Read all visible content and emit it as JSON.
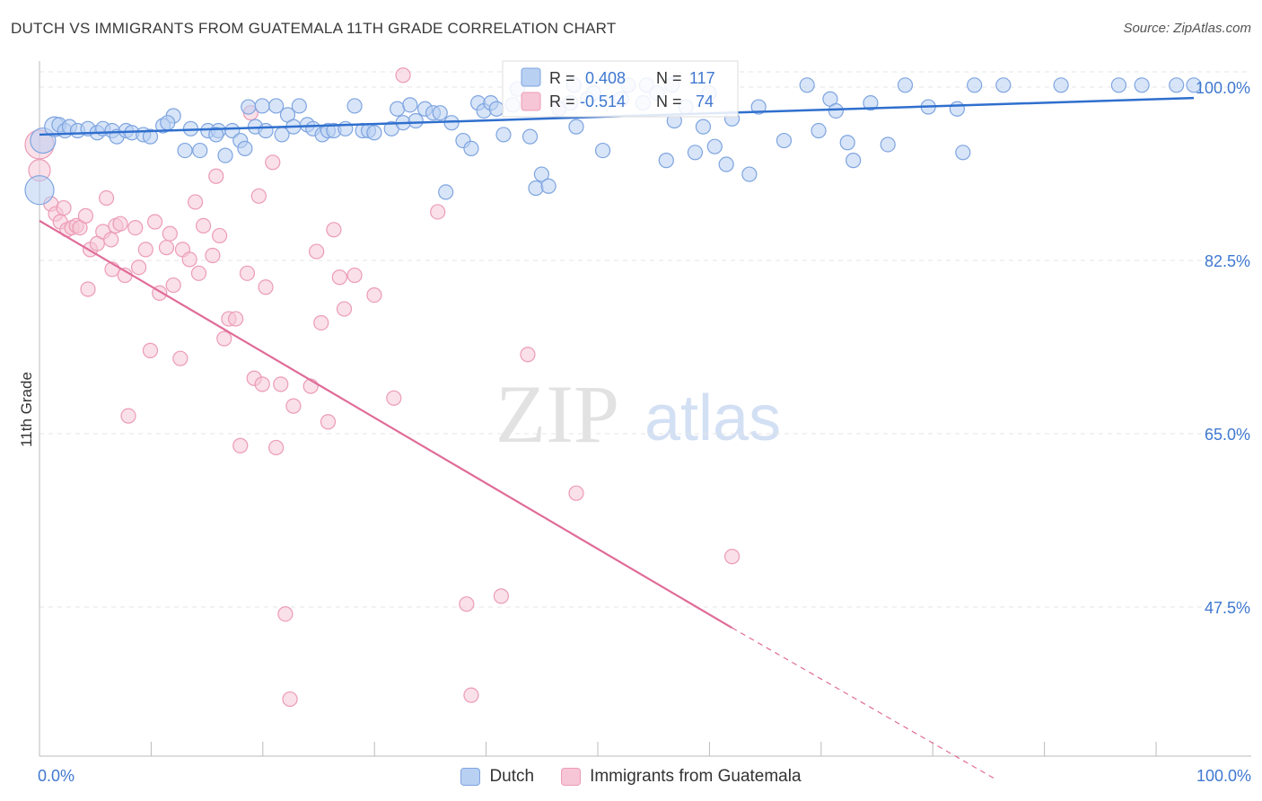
{
  "header": {
    "title": "DUTCH VS IMMIGRANTS FROM GUATEMALA 11TH GRADE CORRELATION CHART",
    "source": "Source: ZipAtlas.com"
  },
  "watermark": {
    "part1": "ZIP",
    "part2": "atlas"
  },
  "legend": {
    "rows": [
      {
        "r_label": "R =",
        "r_value": "0.408",
        "n_label": "N =",
        "n_value": "117"
      },
      {
        "r_label": "R =",
        "r_value": "-0.514",
        "n_label": "N =",
        "n_value": "74"
      }
    ]
  },
  "bottom_legend": {
    "items": [
      "Dutch",
      "Immigrants from Guatemala"
    ]
  },
  "chart_data": {
    "type": "scatter",
    "title": "DUTCH VS IMMIGRANTS FROM GUATEMALA 11TH GRADE CORRELATION CHART",
    "xlabel": "",
    "ylabel": "11th Grade",
    "xlim": [
      0,
      100
    ],
    "ylim": [
      30,
      101.5
    ],
    "x_tick_labels": [
      "0.0%",
      "100.0%"
    ],
    "y_ticks": [
      100,
      82.5,
      65,
      47.5
    ],
    "y_tick_labels": [
      "100.0%",
      "82.5%",
      "65.0%",
      "47.5%"
    ],
    "grid": true,
    "legend_position": "top-center",
    "colors": {
      "blue_fill": "#b8d0f2",
      "blue_stroke": "#7ea4e0",
      "blue_line": "#2f6fce",
      "pink_fill": "#f6c6d6",
      "pink_stroke": "#ec9bb6",
      "pink_line": "#e06c98",
      "axis_text": "#3f78d0"
    },
    "series": [
      {
        "name": "Dutch",
        "r": 0.408,
        "n": 117,
        "trend": {
          "x": [
            0,
            100
          ],
          "y": [
            95.2,
            98.9
          ]
        },
        "points": [
          [
            0,
            89.6,
            16
          ],
          [
            0.3,
            94.6,
            14
          ],
          [
            1.3,
            96,
            11
          ],
          [
            1.7,
            96.2,
            8
          ],
          [
            2.2,
            95.6,
            8
          ],
          [
            2.6,
            96,
            8
          ],
          [
            3.3,
            95.6,
            8
          ],
          [
            4.2,
            95.8,
            8
          ],
          [
            5.0,
            95.4,
            8
          ],
          [
            5.5,
            95.8,
            8
          ],
          [
            6.3,
            95.6,
            8
          ],
          [
            6.7,
            95.0,
            8
          ],
          [
            7.5,
            95.6,
            8
          ],
          [
            8.0,
            95.4,
            8
          ],
          [
            9.0,
            95.2,
            8
          ],
          [
            9.6,
            95.0,
            8
          ],
          [
            10.7,
            96.1,
            8
          ],
          [
            11.6,
            97.1,
            8
          ],
          [
            11.1,
            96.4,
            8
          ],
          [
            12.6,
            93.6,
            8
          ],
          [
            13.1,
            95.8,
            8
          ],
          [
            13.9,
            93.6,
            8
          ],
          [
            14.6,
            95.6,
            8
          ],
          [
            15.5,
            95.6,
            8
          ],
          [
            15.3,
            95.2,
            8
          ],
          [
            16.1,
            93.1,
            8
          ],
          [
            16.7,
            95.6,
            8
          ],
          [
            17.4,
            94.6,
            8
          ],
          [
            17.8,
            93.8,
            8
          ],
          [
            18.1,
            98.0,
            8
          ],
          [
            18.7,
            96.0,
            8
          ],
          [
            19.3,
            98.1,
            8
          ],
          [
            19.6,
            95.6,
            8
          ],
          [
            20.5,
            98.1,
            8
          ],
          [
            21.0,
            95.2,
            8
          ],
          [
            21.5,
            97.2,
            8
          ],
          [
            22.0,
            96.0,
            8
          ],
          [
            22.5,
            98.1,
            8
          ],
          [
            23.2,
            96.2,
            8
          ],
          [
            23.7,
            95.8,
            8
          ],
          [
            24.5,
            95.2,
            8
          ],
          [
            25.0,
            95.6,
            8
          ],
          [
            25.5,
            95.6,
            8
          ],
          [
            26.5,
            95.8,
            8
          ],
          [
            27.3,
            98.1,
            8
          ],
          [
            28.0,
            95.6,
            8
          ],
          [
            28.5,
            95.6,
            8
          ],
          [
            29.0,
            95.4,
            8
          ],
          [
            30.5,
            95.8,
            8
          ],
          [
            31.0,
            97.8,
            8
          ],
          [
            31.5,
            96.4,
            8
          ],
          [
            32.1,
            98.2,
            8
          ],
          [
            32.6,
            96.6,
            8
          ],
          [
            33.4,
            97.8,
            8
          ],
          [
            34.1,
            97.4,
            8
          ],
          [
            34.7,
            97.4,
            8
          ],
          [
            35.7,
            96.4,
            8
          ],
          [
            35.2,
            89.4,
            8
          ],
          [
            36.7,
            94.6,
            8
          ],
          [
            37.4,
            93.8,
            8
          ],
          [
            38.0,
            98.4,
            8
          ],
          [
            38.5,
            97.6,
            8
          ],
          [
            39.1,
            98.4,
            8
          ],
          [
            39.6,
            97.8,
            8
          ],
          [
            40.2,
            95.2,
            8
          ],
          [
            41.0,
            98.2,
            8
          ],
          [
            41.4,
            99.8,
            8
          ],
          [
            42.5,
            95.0,
            8
          ],
          [
            43.0,
            89.8,
            8
          ],
          [
            43.5,
            91.2,
            8
          ],
          [
            44.1,
            90.0,
            8
          ],
          [
            45.0,
            97.8,
            8
          ],
          [
            46.0,
            98.4,
            8
          ],
          [
            46.5,
            96.0,
            8
          ],
          [
            46.3,
            100.2,
            8
          ],
          [
            47.5,
            98.8,
            8
          ],
          [
            48.0,
            99.4,
            8
          ],
          [
            48.8,
            93.6,
            8
          ],
          [
            50.4,
            98.8,
            8
          ],
          [
            51.0,
            100.2,
            8
          ],
          [
            52.3,
            98.4,
            8
          ],
          [
            52.6,
            100.2,
            8
          ],
          [
            53.5,
            99.4,
            8
          ],
          [
            54.3,
            92.6,
            8
          ],
          [
            54.8,
            100.2,
            8
          ],
          [
            55.0,
            96.6,
            8
          ],
          [
            56.0,
            98.0,
            8
          ],
          [
            56.8,
            93.4,
            8
          ],
          [
            57.5,
            96.0,
            8
          ],
          [
            58.5,
            94.0,
            8
          ],
          [
            58.0,
            99.4,
            8
          ],
          [
            59.5,
            92.2,
            8
          ],
          [
            60.0,
            96.8,
            8
          ],
          [
            61.5,
            91.2,
            8
          ],
          [
            62.3,
            98.0,
            8
          ],
          [
            64.5,
            94.6,
            8
          ],
          [
            66.5,
            100.2,
            8
          ],
          [
            67.5,
            95.6,
            8
          ],
          [
            68.5,
            98.8,
            8
          ],
          [
            69.0,
            97.6,
            8
          ],
          [
            70.0,
            94.4,
            8
          ],
          [
            70.5,
            92.6,
            8
          ],
          [
            72.0,
            98.4,
            8
          ],
          [
            73.5,
            94.2,
            8
          ],
          [
            75.0,
            100.2,
            8
          ],
          [
            77.0,
            98.0,
            8
          ],
          [
            79.5,
            97.8,
            8
          ],
          [
            80.0,
            93.4,
            8
          ],
          [
            81.0,
            100.2,
            8
          ],
          [
            83.5,
            100.2,
            8
          ],
          [
            88.5,
            100.2,
            8
          ],
          [
            93.5,
            100.2,
            8
          ],
          [
            95.5,
            100.2,
            8
          ],
          [
            98.5,
            100.2,
            8
          ],
          [
            100,
            100.2,
            8
          ]
        ]
      },
      {
        "name": "Immigrants from Guatemala",
        "r": -0.514,
        "n": 74,
        "trend": {
          "x": [
            0,
            60
          ],
          "y": [
            86.5,
            45.4
          ]
        },
        "trend_dashed": {
          "x": [
            60,
            83
          ],
          "y": [
            45.4,
            30.0
          ]
        },
        "points": [
          [
            0,
            94.2,
            16
          ],
          [
            0,
            91.6,
            12
          ],
          [
            1.0,
            88.2,
            8
          ],
          [
            1.4,
            87.2,
            8
          ],
          [
            1.8,
            86.4,
            8
          ],
          [
            2.1,
            87.8,
            8
          ],
          [
            2.4,
            85.6,
            8
          ],
          [
            2.8,
            85.8,
            8
          ],
          [
            3.2,
            86.0,
            8
          ],
          [
            3.5,
            85.8,
            8
          ],
          [
            4.0,
            87.0,
            8
          ],
          [
            4.2,
            79.6,
            8
          ],
          [
            4.4,
            83.6,
            8
          ],
          [
            5.0,
            84.2,
            8
          ],
          [
            5.5,
            85.4,
            8
          ],
          [
            5.8,
            88.8,
            8
          ],
          [
            6.2,
            84.6,
            8
          ],
          [
            6.6,
            86.0,
            8
          ],
          [
            6.3,
            81.6,
            8
          ],
          [
            7.0,
            86.2,
            8
          ],
          [
            7.4,
            81.0,
            8
          ],
          [
            7.7,
            66.8,
            8
          ],
          [
            8.3,
            85.8,
            8
          ],
          [
            8.6,
            81.8,
            8
          ],
          [
            9.2,
            83.6,
            8
          ],
          [
            9.6,
            73.4,
            8
          ],
          [
            10.0,
            86.4,
            8
          ],
          [
            10.4,
            79.2,
            8
          ],
          [
            11.0,
            83.8,
            8
          ],
          [
            11.3,
            85.2,
            8
          ],
          [
            11.6,
            80.0,
            8
          ],
          [
            12.2,
            72.6,
            8
          ],
          [
            12.4,
            83.6,
            8
          ],
          [
            13.0,
            82.6,
            8
          ],
          [
            13.5,
            88.4,
            8
          ],
          [
            13.8,
            81.2,
            8
          ],
          [
            14.2,
            86.0,
            8
          ],
          [
            15.0,
            83.0,
            8
          ],
          [
            15.3,
            91.0,
            8
          ],
          [
            15.6,
            85.0,
            8
          ],
          [
            16.0,
            74.6,
            8
          ],
          [
            16.4,
            76.6,
            8
          ],
          [
            17.0,
            76.6,
            8
          ],
          [
            17.4,
            63.8,
            8
          ],
          [
            18.0,
            81.2,
            8
          ],
          [
            18.3,
            97.4,
            8
          ],
          [
            18.6,
            70.6,
            8
          ],
          [
            19.0,
            89.0,
            8
          ],
          [
            19.3,
            70.0,
            8
          ],
          [
            19.6,
            79.8,
            8
          ],
          [
            20.2,
            92.4,
            8
          ],
          [
            20.5,
            63.6,
            8
          ],
          [
            20.9,
            70.0,
            8
          ],
          [
            21.3,
            46.8,
            8
          ],
          [
            21.7,
            38.2,
            8
          ],
          [
            22.0,
            67.8,
            8
          ],
          [
            23.5,
            69.8,
            8
          ],
          [
            24.0,
            83.4,
            8
          ],
          [
            24.4,
            76.2,
            8
          ],
          [
            25.0,
            66.2,
            8
          ],
          [
            25.5,
            85.6,
            8
          ],
          [
            26.0,
            80.8,
            8
          ],
          [
            26.4,
            77.6,
            8
          ],
          [
            27.3,
            81.0,
            8
          ],
          [
            29.0,
            79.0,
            8
          ],
          [
            30.7,
            68.6,
            8
          ],
          [
            31.5,
            101.2,
            8
          ],
          [
            34.5,
            87.4,
            8
          ],
          [
            37.0,
            47.8,
            8
          ],
          [
            37.4,
            38.6,
            8
          ],
          [
            40.0,
            48.6,
            8
          ],
          [
            42.3,
            73.0,
            8
          ],
          [
            45.0,
            97.8,
            8
          ],
          [
            46.5,
            59.0,
            8
          ],
          [
            60.0,
            52.6,
            8
          ]
        ]
      }
    ]
  }
}
